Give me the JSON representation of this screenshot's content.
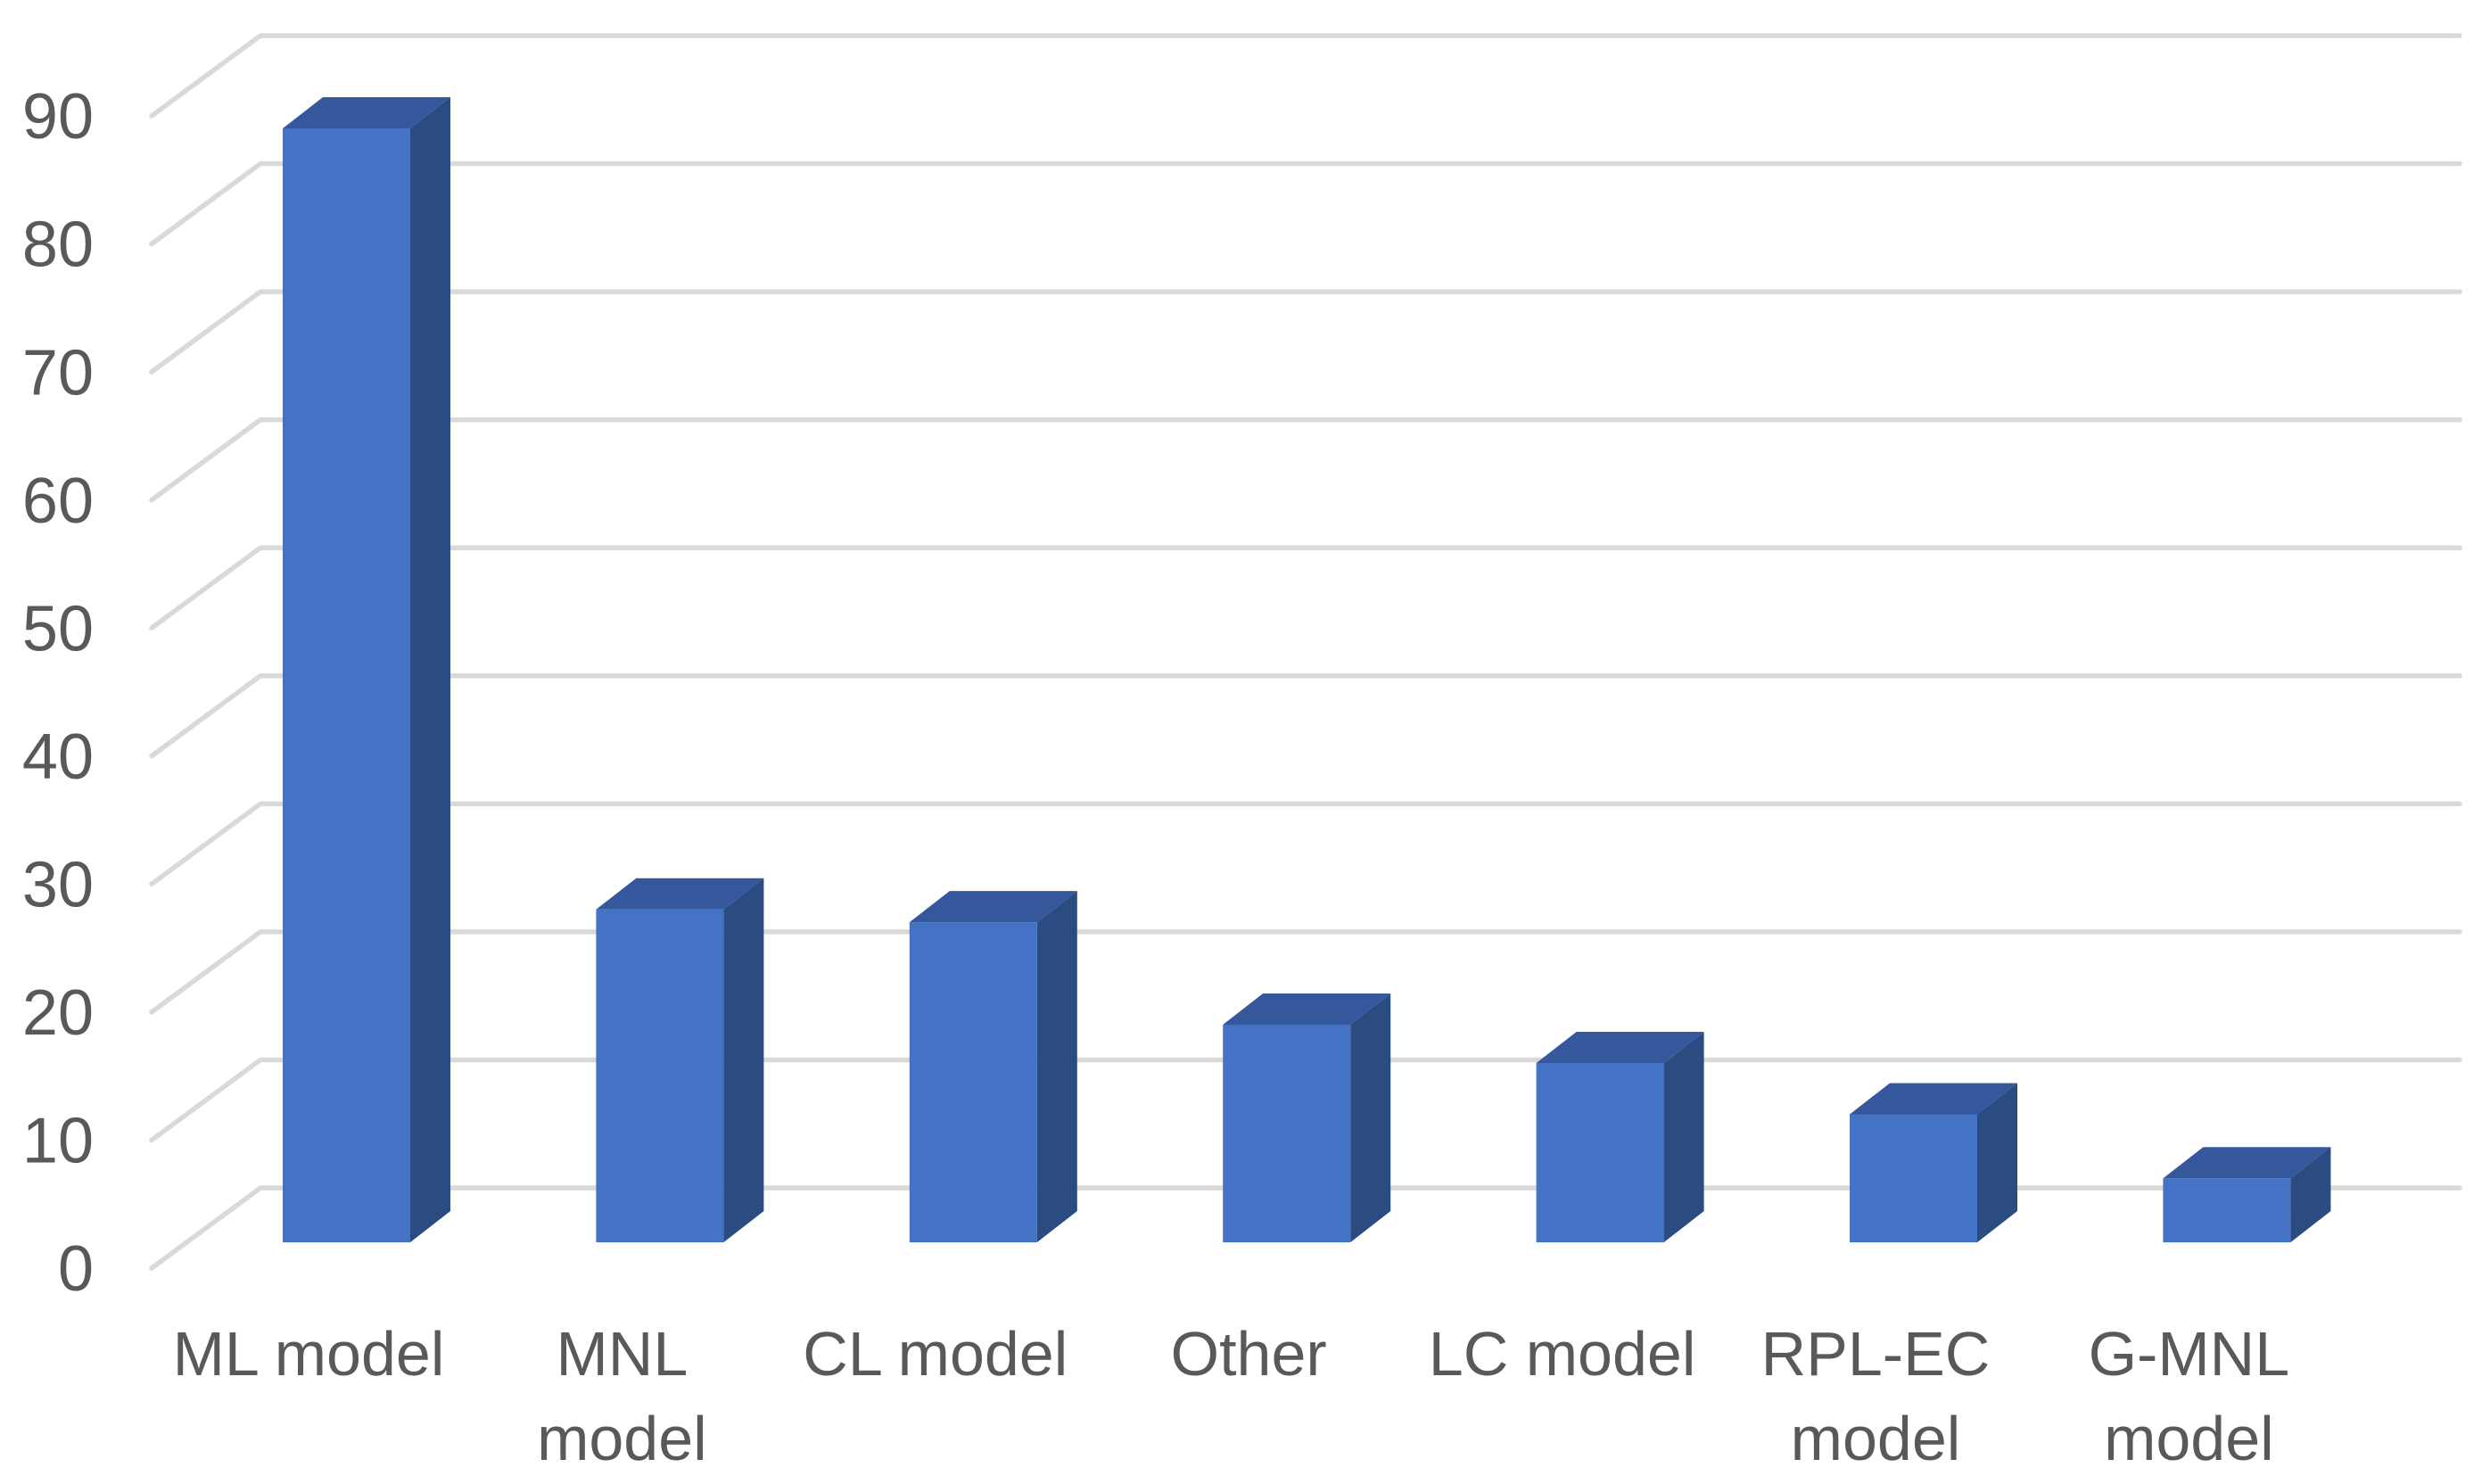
{
  "chart_data": {
    "type": "bar",
    "variant": "3d-column",
    "title": "",
    "xlabel": "",
    "ylabel": "",
    "categories": [
      "ML model",
      "MNL model",
      "CL model",
      "Other",
      "LC model",
      "RPL-EC model",
      "G-MNL model"
    ],
    "category_label_lines": [
      [
        "ML model"
      ],
      [
        "MNL",
        "model"
      ],
      [
        "CL model"
      ],
      [
        "Other"
      ],
      [
        "LC model"
      ],
      [
        "RPL-EC",
        "model"
      ],
      [
        "G-MNL",
        "model"
      ]
    ],
    "values": [
      87,
      26,
      25,
      17,
      14,
      10,
      5
    ],
    "ylim": [
      0,
      90
    ],
    "y_tick_step": 10,
    "y_ticks": [
      "0",
      "10",
      "20",
      "30",
      "40",
      "50",
      "60",
      "70",
      "80",
      "90"
    ],
    "grid": true,
    "legend": false,
    "colors": {
      "bar_front": "#4472C4",
      "bar_top": "#35579B",
      "bar_side": "#2B4C80",
      "gridline": "#D9D9D9",
      "text": "#595959",
      "background": "#FFFFFF"
    }
  }
}
